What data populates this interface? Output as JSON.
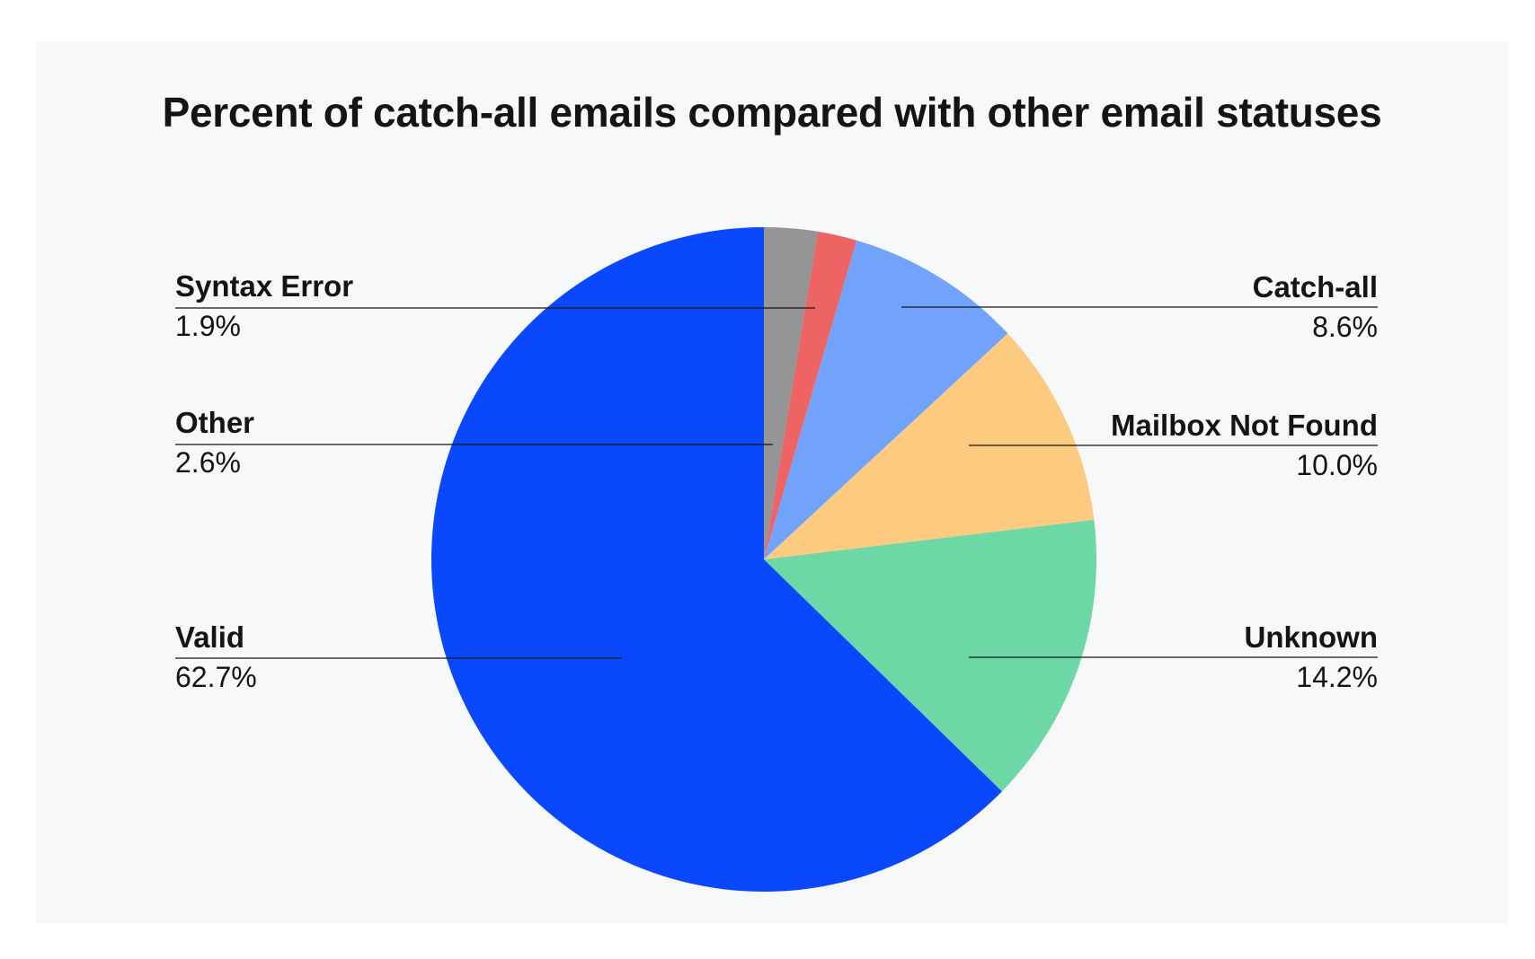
{
  "chart_data": {
    "type": "pie",
    "title": "Percent of catch-all emails compared with other email statuses",
    "start_angle_deg": 0,
    "direction": "clockwise",
    "slices": [
      {
        "label": "Other",
        "value": 2.6,
        "display": "2.6%",
        "color": "#959595",
        "label_side": "left"
      },
      {
        "label": "Syntax Error",
        "value": 1.9,
        "display": "1.9%",
        "color": "#ee6464",
        "label_side": "left"
      },
      {
        "label": "Catch-all",
        "value": 8.6,
        "display": "8.6%",
        "color": "#71a3fd",
        "label_side": "right"
      },
      {
        "label": "Mailbox Not Found",
        "value": 10.0,
        "display": "10.0%",
        "color": "#fdcb7f",
        "label_side": "right"
      },
      {
        "label": "Unknown",
        "value": 14.2,
        "display": "14.2%",
        "color": "#6dd8a5",
        "label_side": "right"
      },
      {
        "label": "Valid",
        "value": 62.7,
        "display": "62.7%",
        "color": "#0a48fe",
        "label_side": "left"
      }
    ],
    "legend": "none",
    "grid": false
  },
  "colors": {
    "background": "#f6f8fa",
    "text": "#141414",
    "leader_line": "#141414"
  }
}
